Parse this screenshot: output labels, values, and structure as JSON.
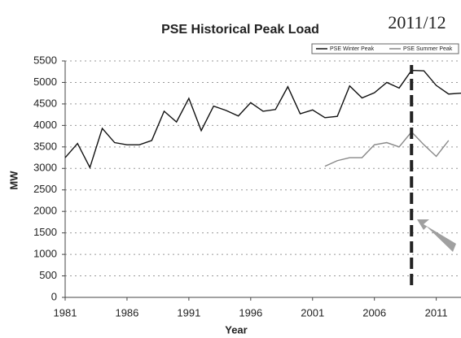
{
  "chart_data": {
    "type": "line",
    "title": "PSE Historical Peak Load",
    "annotation": "2011/12",
    "xlabel": "Year",
    "ylabel": "MW",
    "x": [
      1981,
      1982,
      1983,
      1984,
      1985,
      1986,
      1987,
      1988,
      1989,
      1990,
      1991,
      1992,
      1993,
      1994,
      1995,
      1996,
      1997,
      1998,
      1999,
      2000,
      2001,
      2002,
      2003,
      2004,
      2005,
      2006,
      2007,
      2008,
      2009,
      2010,
      2011,
      2012,
      2013
    ],
    "series": [
      {
        "name": "PSE Winter Peak",
        "color": "#111111",
        "values": [
          3250,
          3580,
          3020,
          3930,
          3600,
          3550,
          3550,
          3650,
          4330,
          4080,
          4630,
          3880,
          4450,
          4350,
          4220,
          4530,
          4330,
          4370,
          4900,
          4270,
          4360,
          4180,
          4210,
          4920,
          4640,
          4760,
          5000,
          4870,
          5280,
          5270,
          4930,
          4730,
          4750
        ]
      },
      {
        "name": "PSE Summer Peak",
        "color": "#888888",
        "values": [
          null,
          null,
          null,
          null,
          null,
          null,
          null,
          null,
          null,
          null,
          null,
          null,
          null,
          null,
          null,
          null,
          null,
          null,
          null,
          null,
          null,
          3050,
          3180,
          3250,
          3250,
          3550,
          3600,
          3500,
          3850,
          3550,
          3280,
          3650,
          null
        ]
      }
    ],
    "marker_x": 2009,
    "xlim": [
      1981,
      2013
    ],
    "xticks": [
      1981,
      1986,
      1991,
      1996,
      2001,
      2006,
      2011
    ],
    "ylim": [
      0,
      5500
    ],
    "yticks": [
      0,
      500,
      1000,
      1500,
      2000,
      2500,
      3000,
      3500,
      4000,
      4500,
      5000,
      5500
    ],
    "grid": true
  }
}
